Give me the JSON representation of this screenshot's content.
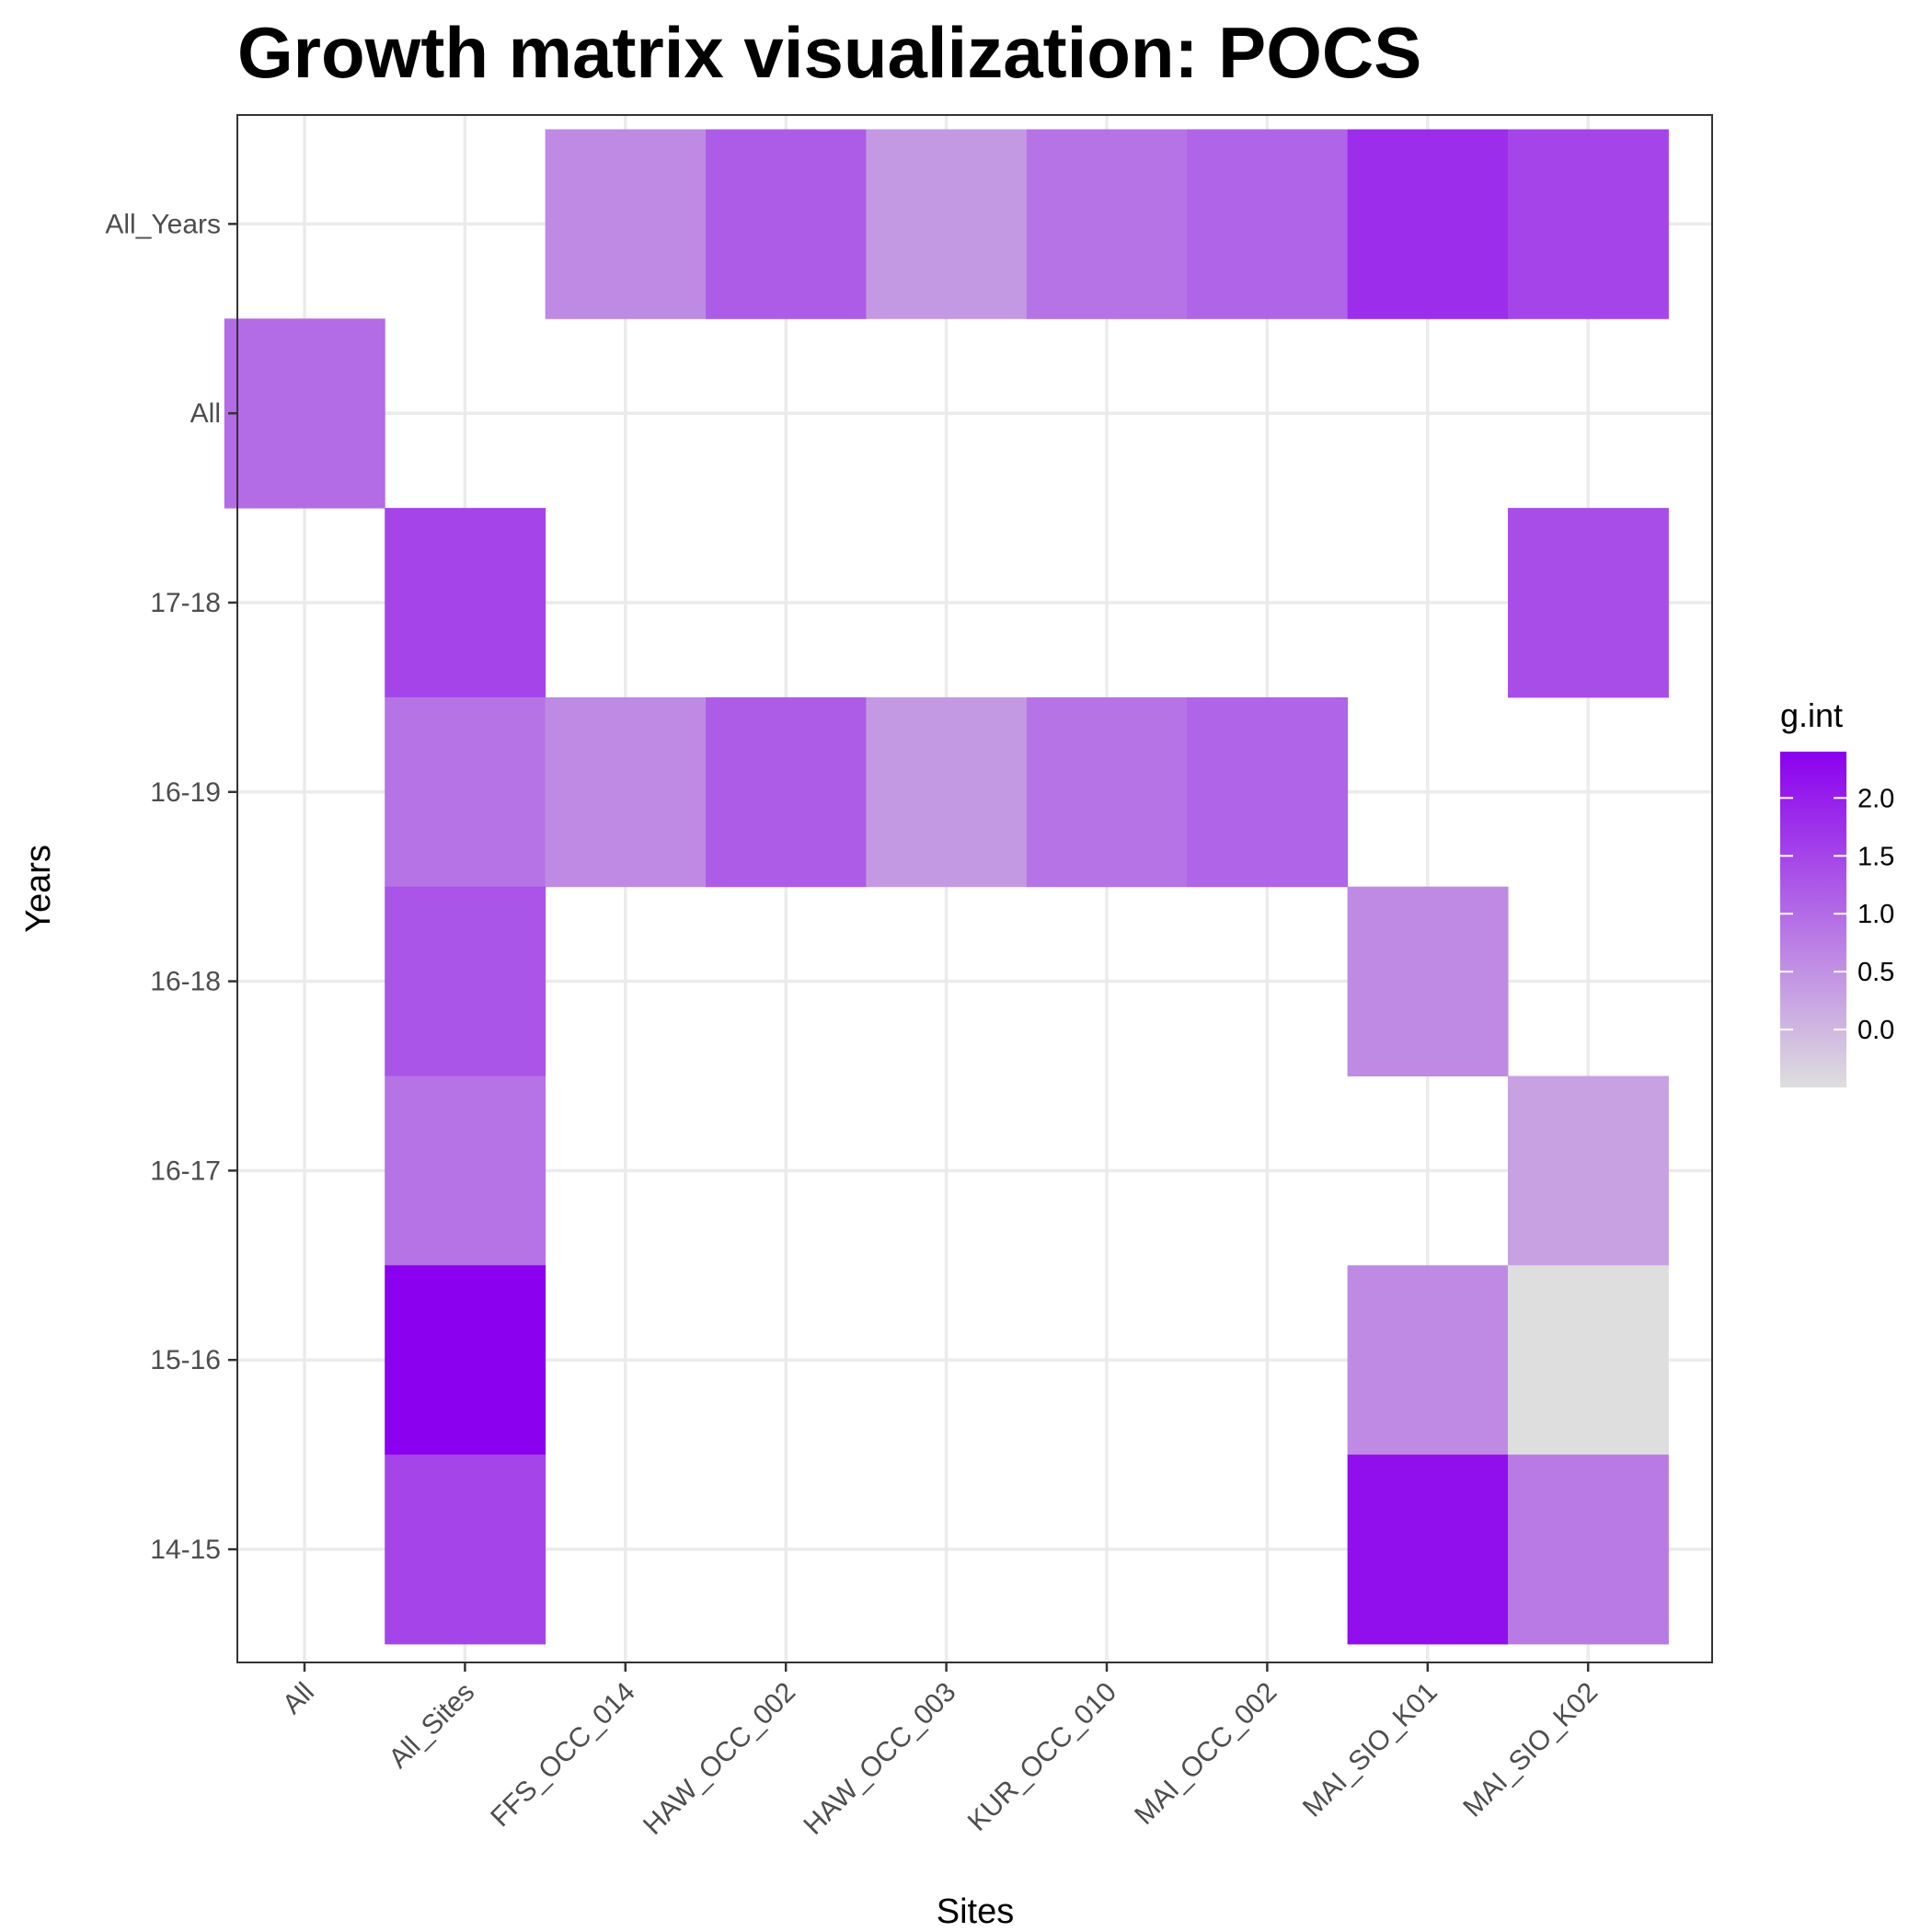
{
  "chart_data": {
    "type": "heatmap",
    "title": "Growth matrix visualization: POCS",
    "xlabel": "Sites",
    "ylabel": "Years",
    "x_categories": [
      "All",
      "All_Sites",
      "FFS_OCC_014",
      "HAW_OCC_002",
      "HAW_OCC_003",
      "KUR_OCC_010",
      "MAI_OCC_002",
      "MAI_SIO_K01",
      "MAI_SIO_K02"
    ],
    "y_categories": [
      "14-15",
      "15-16",
      "16-17",
      "16-18",
      "16-19",
      "17-18",
      "All",
      "All_Years"
    ],
    "cells": [
      {
        "x": "FFS_OCC_014",
        "y": "All_Years",
        "value": 0.6
      },
      {
        "x": "HAW_OCC_002",
        "y": "All_Years",
        "value": 1.2
      },
      {
        "x": "HAW_OCC_003",
        "y": "All_Years",
        "value": 0.4
      },
      {
        "x": "KUR_OCC_010",
        "y": "All_Years",
        "value": 0.9
      },
      {
        "x": "MAI_OCC_002",
        "y": "All_Years",
        "value": 1.1
      },
      {
        "x": "MAI_SIO_K01",
        "y": "All_Years",
        "value": 1.8
      },
      {
        "x": "MAI_SIO_K02",
        "y": "All_Years",
        "value": 1.5
      },
      {
        "x": "All",
        "y": "All",
        "value": 1.0
      },
      {
        "x": "All_Sites",
        "y": "17-18",
        "value": 1.5
      },
      {
        "x": "MAI_SIO_K02",
        "y": "17-18",
        "value": 1.4
      },
      {
        "x": "All_Sites",
        "y": "16-19",
        "value": 0.9
      },
      {
        "x": "FFS_OCC_014",
        "y": "16-19",
        "value": 0.6
      },
      {
        "x": "HAW_OCC_002",
        "y": "16-19",
        "value": 1.2
      },
      {
        "x": "HAW_OCC_003",
        "y": "16-19",
        "value": 0.4
      },
      {
        "x": "KUR_OCC_010",
        "y": "16-19",
        "value": 0.9
      },
      {
        "x": "MAI_OCC_002",
        "y": "16-19",
        "value": 1.1
      },
      {
        "x": "All_Sites",
        "y": "16-18",
        "value": 1.3
      },
      {
        "x": "MAI_SIO_K01",
        "y": "16-18",
        "value": 0.6
      },
      {
        "x": "All_Sites",
        "y": "16-17",
        "value": 0.9
      },
      {
        "x": "MAI_SIO_K02",
        "y": "16-17",
        "value": 0.3
      },
      {
        "x": "All_Sites",
        "y": "15-16",
        "value": 2.4
      },
      {
        "x": "MAI_SIO_K01",
        "y": "15-16",
        "value": 0.6
      },
      {
        "x": "MAI_SIO_K02",
        "y": "15-16",
        "value": -0.5
      },
      {
        "x": "All_Sites",
        "y": "14-15",
        "value": 1.5
      },
      {
        "x": "MAI_SIO_K01",
        "y": "14-15",
        "value": 2.2
      },
      {
        "x": "MAI_SIO_K02",
        "y": "14-15",
        "value": 0.8
      }
    ],
    "legend": {
      "title": "g.int",
      "ticks": [
        "2.0",
        "1.5",
        "1.0",
        "0.5",
        "0.0"
      ],
      "tick_values": [
        2.0,
        1.5,
        1.0,
        0.5,
        0.0
      ],
      "range": [
        -0.5,
        2.4
      ],
      "low_color": "#dedede",
      "high_color": "#8b00ee",
      "placement": "right"
    },
    "grid": true,
    "panel_border_color": "#333333",
    "grid_color": "#ebebeb"
  }
}
